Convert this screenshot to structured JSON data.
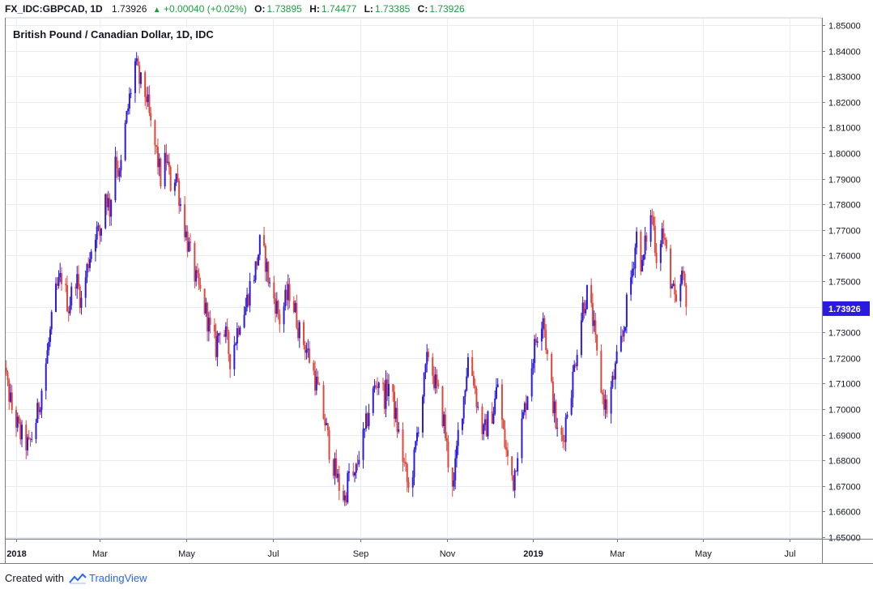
{
  "header": {
    "symbol": "FX_IDC:GBPCAD, 1D",
    "price": "1.73926",
    "change_arrow": "▲",
    "change": "+0.00040 (+0.02%)",
    "o_label": "O:",
    "o_value": "1.73895",
    "h_label": "H:",
    "h_value": "1.74477",
    "l_label": "L:",
    "l_value": "1.73385",
    "c_label": "C:",
    "c_value": "1.73926"
  },
  "footer": {
    "created_with": "Created with",
    "brand": "TradingView"
  },
  "colors": {
    "up": "#2b1ae0",
    "down": "#e0473c",
    "grid": "#e6edf5",
    "price_tag": "#2b1ae0",
    "change_up": "#1b9e3e"
  },
  "chart_data": {
    "type": "candlestick",
    "title": "British Pound / Canadian Dollar, 1D, IDC",
    "ylim": [
      1.65,
      1.85
    ],
    "y_ticks": [
      "1.85000",
      "1.84000",
      "1.83000",
      "1.82000",
      "1.81000",
      "1.80000",
      "1.79000",
      "1.78000",
      "1.77000",
      "1.76000",
      "1.75000",
      "1.74000",
      "1.73000",
      "1.72000",
      "1.71000",
      "1.70000",
      "1.69000",
      "1.68000",
      "1.67000",
      "1.66000",
      "1.65000"
    ],
    "x_labels": [
      {
        "label": "2018",
        "date": "2018-01-01",
        "bold": true
      },
      {
        "label": "Mar",
        "date": "2018-03-01",
        "bold": false
      },
      {
        "label": "May",
        "date": "2018-05-01",
        "bold": false
      },
      {
        "label": "Jul",
        "date": "2018-07-01",
        "bold": false
      },
      {
        "label": "Sep",
        "date": "2018-09-01",
        "bold": false
      },
      {
        "label": "Nov",
        "date": "2018-11-01",
        "bold": false
      },
      {
        "label": "2019",
        "date": "2019-01-01",
        "bold": true
      },
      {
        "label": "Mar",
        "date": "2019-03-01",
        "bold": false
      },
      {
        "label": "May",
        "date": "2019-05-01",
        "bold": false
      },
      {
        "label": "Jul",
        "date": "2019-07-01",
        "bold": false
      }
    ],
    "last_price": "1.73926",
    "last_price_value": 1.73926,
    "close_path": [
      [
        "2017-12-20",
        1.725
      ],
      [
        "2017-12-29",
        1.7
      ],
      [
        "2018-01-04",
        1.69
      ],
      [
        "2018-01-10",
        1.685
      ],
      [
        "2018-01-16",
        1.698
      ],
      [
        "2018-01-22",
        1.718
      ],
      [
        "2018-01-29",
        1.745
      ],
      [
        "2018-02-02",
        1.752
      ],
      [
        "2018-02-07",
        1.74
      ],
      [
        "2018-02-12",
        1.752
      ],
      [
        "2018-02-16",
        1.742
      ],
      [
        "2018-02-21",
        1.758
      ],
      [
        "2018-02-26",
        1.77
      ],
      [
        "2018-03-01",
        1.768
      ],
      [
        "2018-03-05",
        1.785
      ],
      [
        "2018-03-08",
        1.778
      ],
      [
        "2018-03-12",
        1.8
      ],
      [
        "2018-03-15",
        1.79
      ],
      [
        "2018-03-19",
        1.81
      ],
      [
        "2018-03-23",
        1.825
      ],
      [
        "2018-03-26",
        1.835
      ],
      [
        "2018-03-29",
        1.828
      ],
      [
        "2018-04-03",
        1.822
      ],
      [
        "2018-04-06",
        1.81
      ],
      [
        "2018-04-10",
        1.8
      ],
      [
        "2018-04-13",
        1.79
      ],
      [
        "2018-04-17",
        1.798
      ],
      [
        "2018-04-20",
        1.788
      ],
      [
        "2018-04-24",
        1.792
      ],
      [
        "2018-04-27",
        1.78
      ],
      [
        "2018-05-01",
        1.768
      ],
      [
        "2018-05-04",
        1.76
      ],
      [
        "2018-05-08",
        1.75
      ],
      [
        "2018-05-11",
        1.745
      ],
      [
        "2018-05-15",
        1.738
      ],
      [
        "2018-05-18",
        1.73
      ],
      [
        "2018-05-22",
        1.724
      ],
      [
        "2018-05-25",
        1.733
      ],
      [
        "2018-05-29",
        1.728
      ],
      [
        "2018-06-01",
        1.72
      ],
      [
        "2018-06-05",
        1.728
      ],
      [
        "2018-06-08",
        1.736
      ],
      [
        "2018-06-12",
        1.74
      ],
      [
        "2018-06-15",
        1.748
      ],
      [
        "2018-06-19",
        1.755
      ],
      [
        "2018-06-22",
        1.764
      ],
      [
        "2018-06-26",
        1.758
      ],
      [
        "2018-06-29",
        1.748
      ],
      [
        "2018-07-03",
        1.742
      ],
      [
        "2018-07-06",
        1.735
      ],
      [
        "2018-07-10",
        1.742
      ],
      [
        "2018-07-13",
        1.746
      ],
      [
        "2018-07-17",
        1.738
      ],
      [
        "2018-07-20",
        1.73
      ],
      [
        "2018-07-24",
        1.725
      ],
      [
        "2018-07-27",
        1.72
      ],
      [
        "2018-07-31",
        1.712
      ],
      [
        "2018-08-03",
        1.705
      ],
      [
        "2018-08-07",
        1.695
      ],
      [
        "2018-08-10",
        1.685
      ],
      [
        "2018-08-14",
        1.676
      ],
      [
        "2018-08-17",
        1.67
      ],
      [
        "2018-08-21",
        1.665
      ],
      [
        "2018-08-24",
        1.675
      ],
      [
        "2018-08-28",
        1.672
      ],
      [
        "2018-08-31",
        1.683
      ],
      [
        "2018-09-04",
        1.69
      ],
      [
        "2018-09-07",
        1.7
      ],
      [
        "2018-09-11",
        1.708
      ],
      [
        "2018-09-14",
        1.712
      ],
      [
        "2018-09-18",
        1.705
      ],
      [
        "2018-09-21",
        1.71
      ],
      [
        "2018-09-25",
        1.7
      ],
      [
        "2018-09-28",
        1.69
      ],
      [
        "2018-10-02",
        1.678
      ],
      [
        "2018-10-05",
        1.668
      ],
      [
        "2018-10-09",
        1.68
      ],
      [
        "2018-10-12",
        1.695
      ],
      [
        "2018-10-16",
        1.71
      ],
      [
        "2018-10-19",
        1.722
      ],
      [
        "2018-10-23",
        1.712
      ],
      [
        "2018-10-26",
        1.705
      ],
      [
        "2018-10-30",
        1.695
      ],
      [
        "2018-11-02",
        1.68
      ],
      [
        "2018-11-06",
        1.67
      ],
      [
        "2018-11-09",
        1.69
      ],
      [
        "2018-11-13",
        1.705
      ],
      [
        "2018-11-16",
        1.72
      ],
      [
        "2018-11-20",
        1.712
      ],
      [
        "2018-11-23",
        1.7
      ],
      [
        "2018-11-27",
        1.69
      ],
      [
        "2018-11-30",
        1.695
      ],
      [
        "2018-12-04",
        1.7
      ],
      [
        "2018-12-07",
        1.71
      ],
      [
        "2018-12-11",
        1.69
      ],
      [
        "2018-12-14",
        1.68
      ],
      [
        "2018-12-18",
        1.672
      ],
      [
        "2018-12-21",
        1.685
      ],
      [
        "2018-12-26",
        1.7
      ],
      [
        "2018-12-31",
        1.718
      ],
      [
        "2019-01-04",
        1.73
      ],
      [
        "2019-01-08",
        1.738
      ],
      [
        "2019-01-11",
        1.72
      ],
      [
        "2019-01-15",
        1.703
      ],
      [
        "2019-01-18",
        1.69
      ],
      [
        "2019-01-22",
        1.688
      ],
      [
        "2019-01-25",
        1.7
      ],
      [
        "2019-01-29",
        1.712
      ],
      [
        "2019-02-01",
        1.725
      ],
      [
        "2019-02-05",
        1.74
      ],
      [
        "2019-02-08",
        1.745
      ],
      [
        "2019-02-12",
        1.735
      ],
      [
        "2019-02-15",
        1.72
      ],
      [
        "2019-02-19",
        1.705
      ],
      [
        "2019-02-22",
        1.7
      ],
      [
        "2019-02-26",
        1.71
      ],
      [
        "2019-03-01",
        1.718
      ],
      [
        "2019-03-05",
        1.728
      ],
      [
        "2019-03-08",
        1.74
      ],
      [
        "2019-03-12",
        1.755
      ],
      [
        "2019-03-15",
        1.768
      ],
      [
        "2019-03-19",
        1.755
      ],
      [
        "2019-03-22",
        1.768
      ],
      [
        "2019-03-26",
        1.776
      ],
      [
        "2019-03-29",
        1.76
      ],
      [
        "2019-04-02",
        1.77
      ],
      [
        "2019-04-05",
        1.76
      ],
      [
        "2019-04-09",
        1.748
      ],
      [
        "2019-04-12",
        1.738
      ],
      [
        "2019-04-16",
        1.752
      ],
      [
        "2019-04-19",
        1.744
      ],
      [
        "2019-04-22",
        1.739
      ]
    ]
  }
}
